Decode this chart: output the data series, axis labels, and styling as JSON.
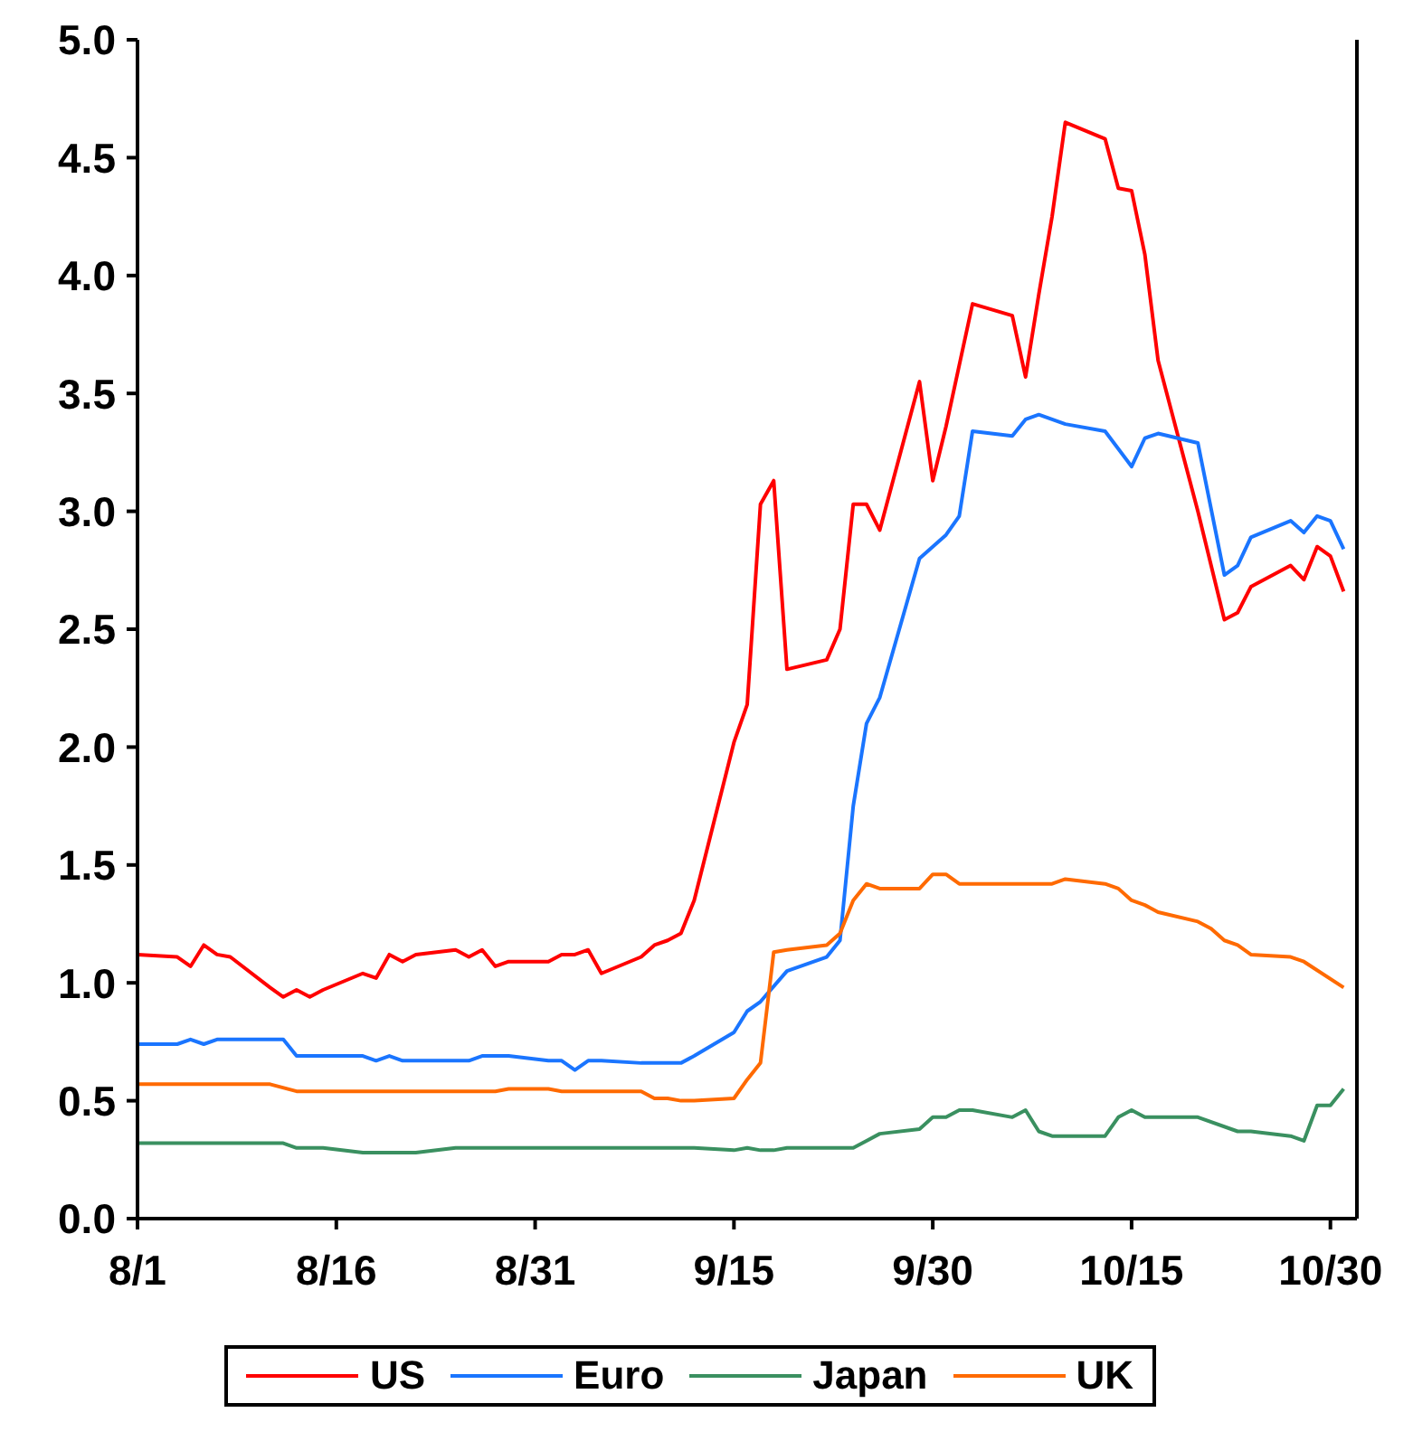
{
  "chart_data": {
    "type": "line",
    "xlim": [
      "--08-01",
      "--11-01"
    ],
    "xticks": [
      {
        "value": "--08-01",
        "label": "8/1"
      },
      {
        "value": "--08-16",
        "label": "8/16"
      },
      {
        "value": "--08-31",
        "label": "8/31"
      },
      {
        "value": "--09-15",
        "label": "9/15"
      },
      {
        "value": "--09-30",
        "label": "9/30"
      },
      {
        "value": "--10-15",
        "label": "10/15"
      },
      {
        "value": "--10-30",
        "label": "10/30"
      }
    ],
    "ylim": [
      0,
      5
    ],
    "yticks": [
      {
        "value": 0,
        "label": "0.0"
      },
      0.5,
      {
        "value": 1,
        "label": "1.0"
      },
      1.5,
      {
        "value": 2,
        "label": "2.0"
      },
      2.5,
      {
        "value": 3,
        "label": "3.0"
      },
      3.5,
      {
        "value": 4,
        "label": "4.0"
      },
      4.5,
      {
        "value": 5,
        "label": "5.0"
      }
    ],
    "grid": false,
    "legend": "bottom",
    "marker": "none",
    "line_style": "solid",
    "series": [
      {
        "name": "US",
        "color": "#ff0000",
        "x": [
          "--08-01",
          "--08-04",
          "--08-05",
          "--08-06",
          "--08-07",
          "--08-08",
          "--08-11",
          "--08-12",
          "--08-13",
          "--08-14",
          "--08-15",
          "--08-18",
          "--08-19",
          "--08-20",
          "--08-21",
          "--08-22",
          "--08-25",
          "--08-26",
          "--08-27",
          "--08-28",
          "--08-29",
          "--09-01",
          "--09-02",
          "--09-03",
          "--09-04",
          "--09-05",
          "--09-08",
          "--09-09",
          "--09-10",
          "--09-11",
          "--09-12",
          "--09-15",
          "--09-16",
          "--09-17",
          "--09-18",
          "--09-19",
          "--09-22",
          "--09-23",
          "--09-24",
          "--09-25",
          "--09-26",
          "--09-29",
          "--09-30",
          "--10-01",
          "--10-02",
          "--10-03",
          "--10-06",
          "--10-07",
          "--10-08",
          "--10-09",
          "--10-10",
          "--10-13",
          "--10-14",
          "--10-15",
          "--10-16",
          "--10-17",
          "--10-20",
          "--10-21",
          "--10-22",
          "--10-23",
          "--10-24",
          "--10-27",
          "--10-28",
          "--10-29",
          "--10-30",
          "--10-31"
        ],
        "values": [
          1.12,
          1.11,
          1.07,
          1.16,
          1.12,
          1.11,
          0.98,
          0.94,
          0.97,
          0.94,
          0.97,
          1.04,
          1.02,
          1.12,
          1.09,
          1.12,
          1.14,
          1.11,
          1.14,
          1.07,
          1.09,
          1.09,
          1.12,
          1.12,
          1.14,
          1.04,
          1.11,
          1.16,
          1.18,
          1.21,
          1.35,
          2.02,
          2.18,
          3.03,
          3.13,
          2.33,
          2.37,
          2.5,
          3.03,
          3.03,
          2.92,
          3.55,
          3.13,
          3.36,
          3.62,
          3.88,
          3.83,
          3.57,
          3.92,
          4.25,
          4.65,
          4.58,
          4.37,
          4.36,
          4.09,
          3.64,
          3.0,
          2.77,
          2.54,
          2.57,
          2.68,
          2.77,
          2.71,
          2.85,
          2.81,
          2.66
        ]
      },
      {
        "name": "Euro",
        "color": "#1a75ff",
        "x": [
          "--08-01",
          "--08-04",
          "--08-05",
          "--08-06",
          "--08-07",
          "--08-12",
          "--08-13",
          "--08-18",
          "--08-19",
          "--08-20",
          "--08-21",
          "--08-26",
          "--08-27",
          "--08-29",
          "--09-01",
          "--09-02",
          "--09-03",
          "--09-04",
          "--09-05",
          "--09-08",
          "--09-11",
          "--09-12",
          "--09-15",
          "--09-16",
          "--09-17",
          "--09-19",
          "--09-22",
          "--09-23",
          "--09-24",
          "--09-25",
          "--09-26",
          "--09-29",
          "--09-30",
          "--10-01",
          "--10-02",
          "--10-03",
          "--10-06",
          "--10-07",
          "--10-08",
          "--10-10",
          "--10-13",
          "--10-15",
          "--10-16",
          "--10-17",
          "--10-20",
          "--10-22",
          "--10-23",
          "--10-24",
          "--10-27",
          "--10-28",
          "--10-29",
          "--10-30",
          "--10-31"
        ],
        "values": [
          0.74,
          0.74,
          0.76,
          0.74,
          0.76,
          0.76,
          0.69,
          0.69,
          0.67,
          0.69,
          0.67,
          0.67,
          0.69,
          0.69,
          0.67,
          0.67,
          0.63,
          0.67,
          0.67,
          0.66,
          0.66,
          0.69,
          0.79,
          0.88,
          0.92,
          1.05,
          1.11,
          1.18,
          1.75,
          2.1,
          2.21,
          2.8,
          2.85,
          2.9,
          2.98,
          3.34,
          3.32,
          3.39,
          3.41,
          3.37,
          3.34,
          3.19,
          3.31,
          3.33,
          3.29,
          2.73,
          2.77,
          2.89,
          2.96,
          2.91,
          2.98,
          2.96,
          2.84
        ]
      },
      {
        "name": "Japan",
        "color": "#3a9060",
        "x": [
          "--08-01",
          "--08-12",
          "--08-13",
          "--08-15",
          "--08-18",
          "--08-22",
          "--08-25",
          "--09-12",
          "--09-15",
          "--09-16",
          "--09-17",
          "--09-18",
          "--09-19",
          "--09-24",
          "--09-25",
          "--09-26",
          "--09-29",
          "--09-30",
          "--10-01",
          "--10-02",
          "--10-03",
          "--10-06",
          "--10-07",
          "--10-08",
          "--10-09",
          "--10-13",
          "--10-14",
          "--10-15",
          "--10-16",
          "--10-20",
          "--10-23",
          "--10-24",
          "--10-27",
          "--10-28",
          "--10-29",
          "--10-30",
          "--10-31"
        ],
        "values": [
          0.32,
          0.32,
          0.3,
          0.3,
          0.28,
          0.28,
          0.3,
          0.3,
          0.29,
          0.3,
          0.29,
          0.29,
          0.3,
          0.3,
          0.33,
          0.36,
          0.38,
          0.43,
          0.43,
          0.46,
          0.46,
          0.43,
          0.46,
          0.37,
          0.35,
          0.35,
          0.43,
          0.46,
          0.43,
          0.43,
          0.37,
          0.37,
          0.35,
          0.33,
          0.48,
          0.48,
          0.55
        ]
      },
      {
        "name": "UK",
        "color": "#ff6a00",
        "x": [
          "--08-01",
          "--08-11",
          "--08-13",
          "--08-28",
          "--08-29",
          "--09-01",
          "--09-02",
          "--09-08",
          "--09-09",
          "--09-10",
          "--09-11",
          "--09-12",
          "--09-15",
          "--09-16",
          "--09-17",
          "--09-18",
          "--09-19",
          "--09-22",
          "--09-23",
          "--09-24",
          "--09-25",
          "--09-26",
          "--09-29",
          "--09-30",
          "--10-01",
          "--10-02",
          "--10-09",
          "--10-10",
          "--10-13",
          "--10-14",
          "--10-15",
          "--10-16",
          "--10-17",
          "--10-20",
          "--10-21",
          "--10-22",
          "--10-23",
          "--10-24",
          "--10-27",
          "--10-28",
          "--10-31"
        ],
        "values": [
          0.57,
          0.57,
          0.54,
          0.54,
          0.55,
          0.55,
          0.54,
          0.54,
          0.51,
          0.51,
          0.5,
          0.5,
          0.51,
          0.59,
          0.66,
          1.13,
          1.14,
          1.16,
          1.21,
          1.35,
          1.42,
          1.4,
          1.4,
          1.46,
          1.46,
          1.42,
          1.42,
          1.44,
          1.42,
          1.4,
          1.35,
          1.33,
          1.3,
          1.26,
          1.23,
          1.18,
          1.16,
          1.12,
          1.11,
          1.09,
          0.98
        ]
      }
    ]
  }
}
